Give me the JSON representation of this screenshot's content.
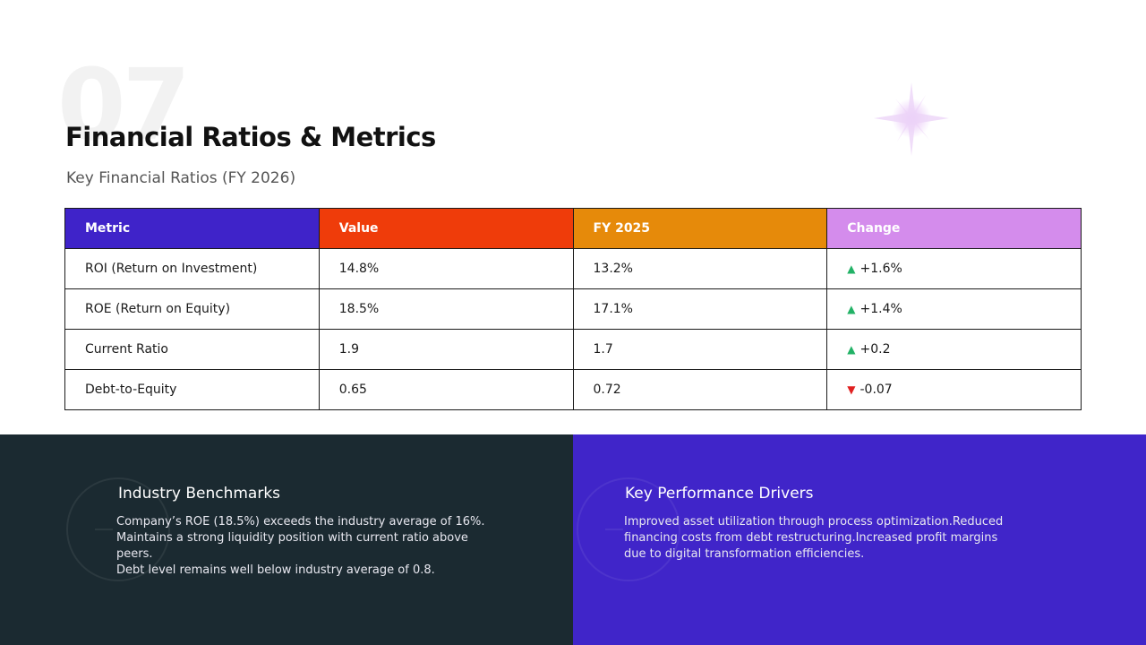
{
  "slide": {
    "number": "07",
    "title": "Financial Ratios & Metrics",
    "subtitle": "Key Financial Ratios (FY 2026)"
  },
  "colors": {
    "header_metric": "#3f23c9",
    "header_value": "#ef3c0a",
    "header_fy2025": "#e68a0a",
    "header_change": "#d48cec",
    "panel_left_bg": "#1b2a31",
    "panel_right_bg": "#4025c9",
    "arrow_up": "#22b266",
    "arrow_down": "#e02020",
    "sparkle": "#ecd4f8"
  },
  "icons": {
    "sparkle": "sparkle-star-icon",
    "up": "triangle-up-icon",
    "down": "triangle-down-icon"
  },
  "table": {
    "headers": [
      "Metric",
      "Value",
      "FY 2025",
      "Change"
    ],
    "rows": [
      {
        "metric": "ROI (Return on Investment)",
        "value": "14.8%",
        "prev": "13.2%",
        "change": "+1.6%",
        "direction": "up"
      },
      {
        "metric": "ROE (Return on Equity)",
        "value": "18.5%",
        "prev": "17.1%",
        "change": "+1.4%",
        "direction": "up"
      },
      {
        "metric": "Current Ratio",
        "value": "1.9",
        "prev": "1.7",
        "change": "+0.2",
        "direction": "up"
      },
      {
        "metric": "Debt-to-Equity",
        "value": "0.65",
        "prev": "0.72",
        "change": "-0.07",
        "direction": "down"
      }
    ]
  },
  "panels": {
    "left": {
      "heading": "Industry Benchmarks",
      "lines": [
        "Company’s ROE (18.5%) exceeds the industry average of 16%.",
        "Maintains a strong liquidity position with current ratio above peers.",
        "Debt level remains well below industry average of 0.8."
      ]
    },
    "right": {
      "heading": "Key Performance Drivers",
      "lines": [
        "Improved asset utilization through process optimization.Reduced",
        "financing costs from debt restructuring.Increased profit margins",
        "due to digital transformation efficiencies."
      ]
    }
  }
}
